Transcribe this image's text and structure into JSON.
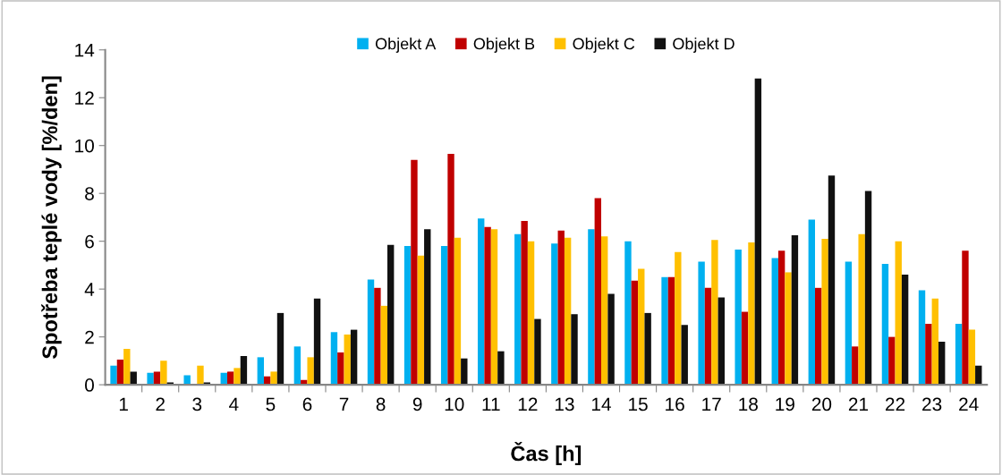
{
  "chart_data": {
    "type": "bar",
    "xlabel": "Čas [h]",
    "ylabel": "Spotřeba teplé vody [%/den]",
    "categories": [
      "1",
      "2",
      "3",
      "4",
      "5",
      "6",
      "7",
      "8",
      "9",
      "10",
      "11",
      "12",
      "13",
      "14",
      "15",
      "16",
      "17",
      "18",
      "19",
      "20",
      "21",
      "22",
      "23",
      "24"
    ],
    "series": [
      {
        "name": "Objekt A",
        "color": "#00b0f0",
        "values": [
          0.8,
          0.5,
          0.4,
          0.5,
          1.15,
          1.6,
          2.2,
          4.4,
          5.8,
          5.8,
          6.95,
          6.3,
          5.9,
          6.5,
          6.0,
          4.5,
          5.15,
          5.65,
          5.3,
          6.9,
          5.15,
          5.05,
          3.95,
          2.55
        ]
      },
      {
        "name": "Objekt B",
        "color": "#c00000",
        "values": [
          1.05,
          0.55,
          0,
          0.55,
          0.35,
          0.2,
          1.35,
          4.05,
          9.4,
          9.65,
          6.6,
          6.85,
          6.45,
          7.8,
          4.35,
          4.5,
          4.05,
          3.05,
          5.6,
          4.05,
          1.6,
          2.0,
          2.55,
          5.6
        ]
      },
      {
        "name": "Objekt C",
        "color": "#ffc000",
        "values": [
          1.5,
          1.0,
          0.8,
          0.7,
          0.55,
          1.15,
          2.1,
          3.3,
          5.4,
          6.15,
          6.5,
          6.0,
          6.15,
          6.2,
          4.85,
          5.55,
          6.05,
          5.95,
          4.7,
          6.1,
          6.3,
          6.0,
          3.6,
          2.3
        ]
      },
      {
        "name": "Objekt D",
        "color": "#111111",
        "values": [
          0.55,
          0.1,
          0.1,
          1.2,
          3.0,
          3.6,
          2.3,
          5.85,
          6.5,
          1.1,
          1.4,
          2.75,
          2.95,
          3.8,
          3.0,
          2.5,
          3.65,
          12.8,
          6.25,
          8.75,
          8.1,
          4.6,
          1.8,
          0.8
        ]
      }
    ],
    "ylim": [
      0,
      14
    ],
    "yticks": [
      0,
      2,
      4,
      6,
      8,
      10,
      12,
      14
    ],
    "grid": false,
    "legend": "top"
  }
}
